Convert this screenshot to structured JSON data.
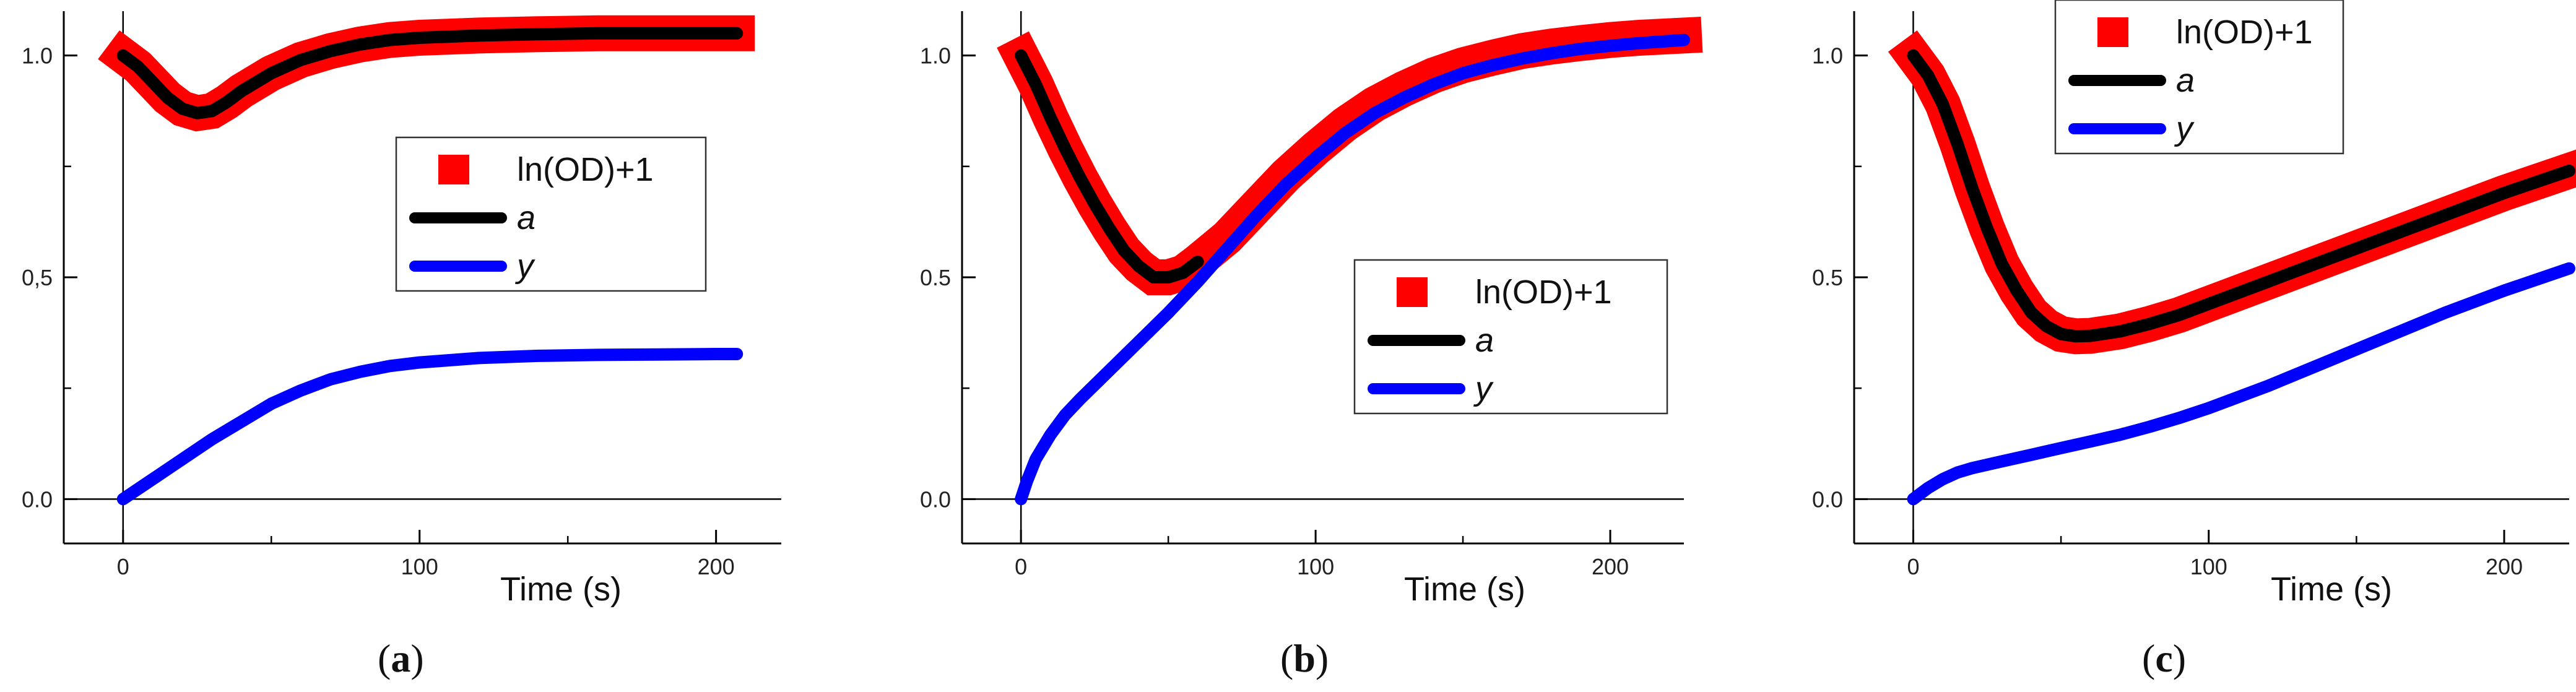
{
  "colors": {
    "measured": "#ff0000",
    "a_fit": "#000000",
    "y_fit": "#0000ff",
    "axis": "#000000"
  },
  "chart_data": [
    {
      "type": "line",
      "panel": "a",
      "caption": {
        "open": "(",
        "letter": "a",
        "close": ")"
      },
      "xlabel": "Time (s)",
      "ylabel": "",
      "xlim": [
        -20,
        222
      ],
      "ylim": [
        -0.1,
        1.1
      ],
      "xticks": [
        0,
        100,
        200
      ],
      "xtick_labels": [
        "0",
        "100",
        "200"
      ],
      "yticks": [
        0.0,
        0.5,
        1.0
      ],
      "ytick_labels": [
        "0.0",
        "0,5",
        "1.0"
      ],
      "legend_position": "center-right",
      "series": [
        {
          "name": "ln(OD)+1",
          "style": "thick-band",
          "x": [
            0,
            5,
            10,
            15,
            20,
            25,
            30,
            35,
            40,
            50,
            60,
            70,
            80,
            90,
            100,
            120,
            140,
            160,
            180,
            200,
            207
          ],
          "y": [
            1.0,
            0.975,
            0.94,
            0.905,
            0.88,
            0.87,
            0.875,
            0.895,
            0.92,
            0.96,
            0.99,
            1.01,
            1.025,
            1.035,
            1.04,
            1.045,
            1.048,
            1.05,
            1.05,
            1.05,
            1.05
          ]
        },
        {
          "name": "a",
          "style": "line",
          "x": [
            0,
            5,
            10,
            15,
            20,
            25,
            30,
            35,
            40,
            50,
            60,
            70,
            80,
            90,
            100,
            120,
            140,
            160,
            180,
            200,
            207
          ],
          "y": [
            1.0,
            0.975,
            0.94,
            0.905,
            0.88,
            0.87,
            0.875,
            0.895,
            0.92,
            0.96,
            0.99,
            1.01,
            1.025,
            1.035,
            1.04,
            1.045,
            1.048,
            1.05,
            1.05,
            1.05,
            1.05
          ]
        },
        {
          "name": "y",
          "style": "line",
          "x": [
            0,
            10,
            20,
            30,
            40,
            50,
            60,
            70,
            80,
            90,
            100,
            120,
            140,
            160,
            180,
            200,
            207
          ],
          "y": [
            0.0,
            0.045,
            0.09,
            0.135,
            0.175,
            0.215,
            0.245,
            0.27,
            0.287,
            0.3,
            0.308,
            0.318,
            0.323,
            0.325,
            0.326,
            0.327,
            0.327
          ]
        }
      ]
    },
    {
      "type": "line",
      "panel": "b",
      "caption": {
        "open": "(",
        "letter": "b",
        "close": ")"
      },
      "xlabel": "Time (s)",
      "ylabel": "",
      "xlim": [
        -20,
        225
      ],
      "ylim": [
        -0.1,
        1.1
      ],
      "xticks": [
        0,
        100,
        200
      ],
      "xtick_labels": [
        "0",
        "100",
        "200"
      ],
      "yticks": [
        0.0,
        0.5,
        1.0
      ],
      "ytick_labels": [
        "0.0",
        "0.5",
        "1.0"
      ],
      "legend_position": "center-right",
      "series": [
        {
          "name": "ln(OD)+1",
          "style": "thick-band",
          "x": [
            0,
            5,
            10,
            15,
            20,
            25,
            30,
            35,
            40,
            45,
            50,
            55,
            60,
            70,
            80,
            90,
            100,
            110,
            120,
            130,
            140,
            150,
            160,
            170,
            180,
            190,
            200,
            210,
            225
          ],
          "y": [
            1.0,
            0.935,
            0.86,
            0.79,
            0.725,
            0.665,
            0.61,
            0.56,
            0.525,
            0.5,
            0.5,
            0.51,
            0.535,
            0.59,
            0.66,
            0.73,
            0.79,
            0.845,
            0.89,
            0.925,
            0.955,
            0.978,
            0.995,
            1.01,
            1.02,
            1.028,
            1.035,
            1.04,
            1.045
          ]
        },
        {
          "name": "a",
          "style": "line",
          "x": [
            0,
            5,
            10,
            15,
            20,
            25,
            30,
            35,
            40,
            45,
            50,
            55,
            60
          ],
          "y": [
            1.0,
            0.935,
            0.86,
            0.79,
            0.725,
            0.665,
            0.61,
            0.56,
            0.525,
            0.5,
            0.5,
            0.51,
            0.535
          ]
        },
        {
          "name": "y",
          "style": "line",
          "x": [
            0,
            2,
            5,
            10,
            15,
            20,
            30,
            40,
            50,
            60,
            70,
            80,
            90,
            100,
            110,
            120,
            130,
            140,
            150,
            160,
            170,
            180,
            190,
            200,
            210,
            225
          ],
          "y": [
            0.0,
            0.04,
            0.09,
            0.145,
            0.19,
            0.225,
            0.29,
            0.355,
            0.42,
            0.49,
            0.565,
            0.64,
            0.71,
            0.77,
            0.825,
            0.87,
            0.905,
            0.935,
            0.96,
            0.978,
            0.993,
            1.005,
            1.015,
            1.022,
            1.028,
            1.035
          ]
        }
      ]
    },
    {
      "type": "line",
      "panel": "c",
      "caption": {
        "open": "(",
        "letter": "c",
        "close": ")"
      },
      "xlabel": "Time (s)",
      "ylabel": "",
      "xlim": [
        -20,
        222
      ],
      "ylim": [
        -0.1,
        1.1
      ],
      "xticks": [
        0,
        100,
        200
      ],
      "xtick_labels": [
        "0",
        "100",
        "200"
      ],
      "yticks": [
        0.0,
        0.5,
        1.0
      ],
      "ytick_labels": [
        "0.0",
        "0.5",
        "1.0"
      ],
      "legend_position": "top-center",
      "series": [
        {
          "name": "ln(OD)+1",
          "style": "thick-band",
          "x": [
            0,
            5,
            10,
            15,
            20,
            25,
            30,
            35,
            40,
            45,
            50,
            55,
            60,
            70,
            80,
            90,
            100,
            120,
            140,
            160,
            180,
            200,
            222
          ],
          "y": [
            1.0,
            0.955,
            0.89,
            0.8,
            0.7,
            0.61,
            0.53,
            0.47,
            0.42,
            0.39,
            0.372,
            0.367,
            0.368,
            0.378,
            0.395,
            0.415,
            0.44,
            0.49,
            0.54,
            0.59,
            0.64,
            0.69,
            0.74
          ]
        },
        {
          "name": "a",
          "style": "line",
          "x": [
            0,
            5,
            10,
            15,
            20,
            25,
            30,
            35,
            40,
            45,
            50,
            55,
            60,
            70,
            80,
            90,
            100,
            120,
            140,
            160,
            180,
            200,
            222
          ],
          "y": [
            1.0,
            0.955,
            0.89,
            0.8,
            0.7,
            0.61,
            0.53,
            0.47,
            0.42,
            0.39,
            0.372,
            0.367,
            0.368,
            0.378,
            0.395,
            0.415,
            0.44,
            0.49,
            0.54,
            0.59,
            0.64,
            0.69,
            0.74
          ]
        },
        {
          "name": "y",
          "style": "line",
          "x": [
            0,
            5,
            10,
            15,
            20,
            30,
            40,
            50,
            60,
            70,
            80,
            90,
            100,
            120,
            140,
            160,
            180,
            200,
            222
          ],
          "y": [
            0.0,
            0.025,
            0.045,
            0.06,
            0.07,
            0.085,
            0.1,
            0.115,
            0.13,
            0.145,
            0.163,
            0.183,
            0.205,
            0.255,
            0.31,
            0.365,
            0.42,
            0.47,
            0.52
          ]
        }
      ]
    }
  ]
}
